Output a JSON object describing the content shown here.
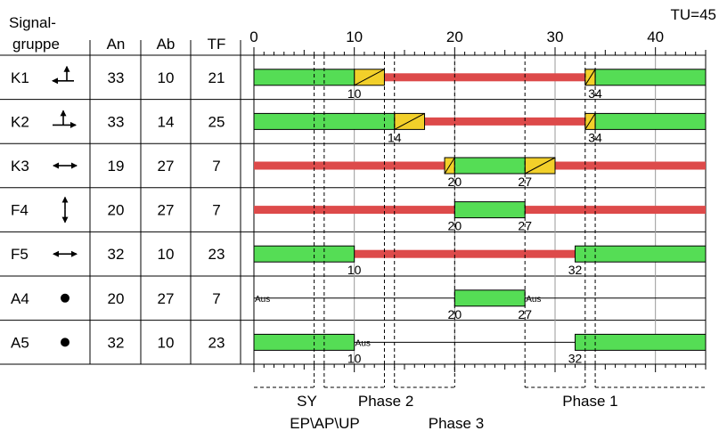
{
  "header": {
    "title_line1": "Signal-",
    "title_line2": "gruppe",
    "col_an": "An",
    "col_ab": "Ab",
    "col_tf": "TF",
    "tu_label": "TU=45"
  },
  "cycle_length": 45,
  "time_axis": {
    "min": 0,
    "max": 45,
    "labels": [
      "0",
      "10",
      "20",
      "30",
      "40"
    ],
    "label_values": [
      0,
      10,
      20,
      30,
      40
    ]
  },
  "colors": {
    "green": "#55dd55",
    "red": "#dd4a4a",
    "yellow": "#f2d02a",
    "line": "#000000",
    "grid": "#9a9a9a"
  },
  "rows": [
    {
      "name": "K1",
      "an": "33",
      "ab": "10",
      "tf": "21",
      "icon": "straight-left-arrow-icon",
      "red_style": "bar",
      "green": [
        [
          0,
          10
        ],
        [
          34,
          45
        ]
      ],
      "yellow": [
        [
          10,
          13
        ],
        [
          33,
          34
        ]
      ],
      "labels": [
        {
          "t": 10,
          "text": "10"
        },
        {
          "t": 34,
          "text": "34"
        }
      ],
      "aus": []
    },
    {
      "name": "K2",
      "an": "33",
      "ab": "14",
      "tf": "25",
      "icon": "straight-right-arrow-icon",
      "red_style": "bar",
      "green": [
        [
          0,
          14
        ],
        [
          34,
          45
        ]
      ],
      "yellow": [
        [
          14,
          17
        ],
        [
          33,
          34
        ]
      ],
      "labels": [
        {
          "t": 14,
          "text": "14"
        },
        {
          "t": 34,
          "text": "34"
        }
      ],
      "aus": []
    },
    {
      "name": "K3",
      "an": "19",
      "ab": "27",
      "tf": "7",
      "icon": "left-right-arrow-icon",
      "red_style": "bar",
      "green": [
        [
          20,
          27
        ]
      ],
      "yellow": [
        [
          19,
          20
        ],
        [
          27,
          30
        ]
      ],
      "labels": [
        {
          "t": 20,
          "text": "20"
        },
        {
          "t": 27,
          "text": "27"
        }
      ],
      "aus": []
    },
    {
      "name": "F4",
      "an": "20",
      "ab": "27",
      "tf": "7",
      "icon": "up-down-arrow-icon",
      "red_style": "bar",
      "green": [
        [
          20,
          27
        ]
      ],
      "yellow": [],
      "labels": [
        {
          "t": 20,
          "text": "20"
        },
        {
          "t": 27,
          "text": "27"
        }
      ],
      "aus": []
    },
    {
      "name": "F5",
      "an": "32",
      "ab": "10",
      "tf": "23",
      "icon": "left-right-arrow-icon",
      "red_style": "bar",
      "green": [
        [
          0,
          10
        ],
        [
          32,
          45
        ]
      ],
      "yellow": [],
      "labels": [
        {
          "t": 10,
          "text": "10"
        },
        {
          "t": 32,
          "text": "32"
        }
      ],
      "aus": []
    },
    {
      "name": "A4",
      "an": "20",
      "ab": "27",
      "tf": "7",
      "icon": "dot-icon",
      "red_style": "line",
      "green": [
        [
          20,
          27
        ]
      ],
      "yellow": [],
      "labels": [
        {
          "t": 20,
          "text": "20"
        },
        {
          "t": 27,
          "text": "27"
        }
      ],
      "aus": [
        {
          "t": 0,
          "text": "Aus"
        },
        {
          "t": 27,
          "text": "Aus"
        }
      ]
    },
    {
      "name": "A5",
      "an": "32",
      "ab": "10",
      "tf": "23",
      "icon": "dot-icon",
      "red_style": "line",
      "green": [
        [
          0,
          10
        ],
        [
          32,
          45
        ]
      ],
      "yellow": [],
      "labels": [
        {
          "t": 10,
          "text": "10"
        },
        {
          "t": 32,
          "text": "32"
        }
      ],
      "aus": [
        {
          "t": 10,
          "text": "Aus"
        }
      ]
    }
  ],
  "markers": [
    6,
    7,
    13,
    14,
    20,
    27,
    33,
    34
  ],
  "phase_brackets": [
    {
      "from": 0,
      "to": 6
    },
    {
      "from": 7,
      "to": 13
    },
    {
      "from": 14,
      "to": 20
    },
    {
      "from": 27,
      "to": 33
    },
    {
      "from": 34,
      "to": 45
    }
  ],
  "bottom_labels": [
    {
      "text": "SY",
      "t": 6.5,
      "line": 1
    },
    {
      "text": "Phase 2",
      "t": 13.5,
      "line": 1
    },
    {
      "text": "Phase 1",
      "t": 33.5,
      "line": 1
    },
    {
      "text": "EP\\AP\\UP",
      "t": 6.5,
      "line": 2
    },
    {
      "text": "Phase 3",
      "t": 20.5,
      "line": 2
    }
  ]
}
